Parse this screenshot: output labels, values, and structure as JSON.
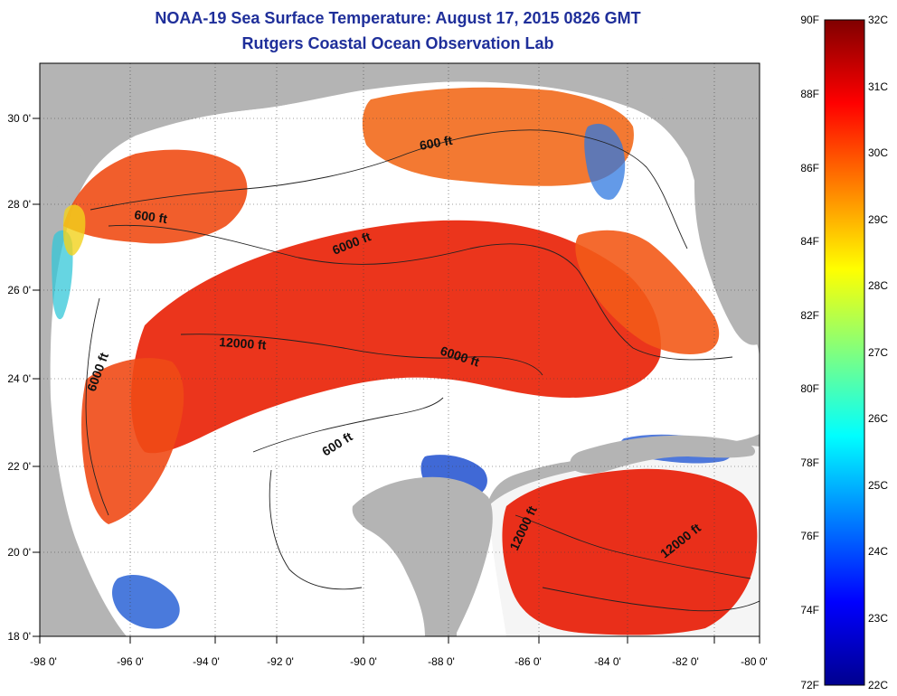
{
  "title": {
    "line1": "NOAA-19 Sea Surface Temperature:  August 17, 2015 0826 GMT",
    "line2": "Rutgers Coastal Ocean Observation Lab"
  },
  "map": {
    "lon_ticks": [
      "-98 0'",
      "-96 0'",
      "-94 0'",
      "-92 0'",
      "-90 0'",
      "-88 0'",
      "-86 0'",
      "-84 0'",
      "-82 0'",
      "-80 0'"
    ],
    "lat_ticks": [
      "30 0'",
      "28 0'",
      "26 0'",
      "24 0'",
      "22 0'",
      "20 0'",
      "18 0'"
    ],
    "contour_labels": [
      "600 ft",
      "600 ft",
      "6000 ft",
      "12000 ft",
      "6000 ft",
      "6000 ft",
      "600 ft",
      "12000 ft",
      "12000 ft"
    ],
    "colors": {
      "land": "#b4b4b4",
      "cloud": "#ffffff",
      "warm": "#f03a12",
      "hot": "#e2160c",
      "cool": "#1f6fe0"
    }
  },
  "colorbar": {
    "fahrenheit": [
      "90F",
      "88F",
      "86F",
      "84F",
      "82F",
      "80F",
      "78F",
      "76F",
      "74F",
      "72F"
    ],
    "celsius": [
      "32C",
      "31C",
      "30C",
      "29C",
      "28C",
      "27C",
      "26C",
      "25C",
      "24C",
      "23C",
      "22C"
    ]
  }
}
